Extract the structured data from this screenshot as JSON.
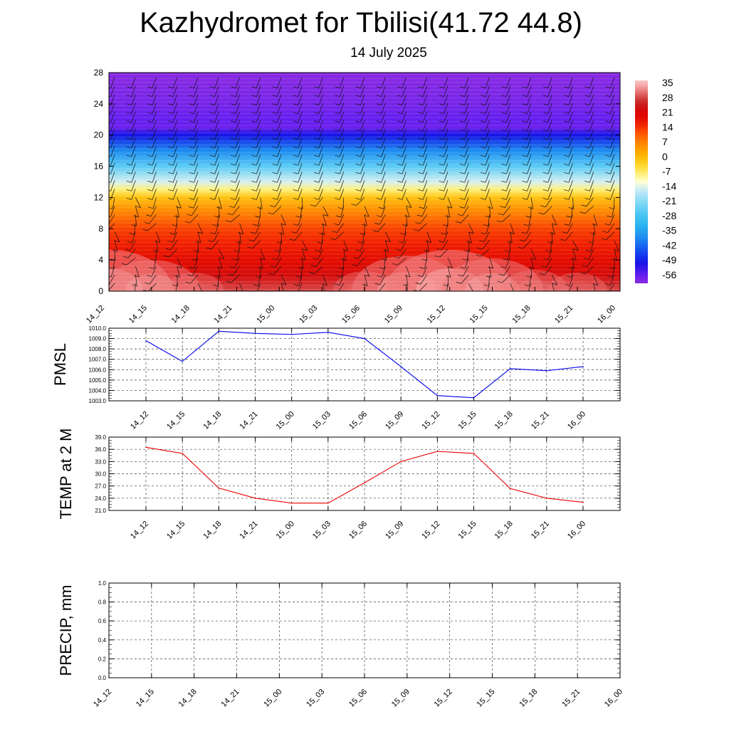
{
  "title": "Kazhydromet for Tbilisi(41.72 44.8)",
  "subtitle": "14 July 2025",
  "time_labels": [
    "14_12",
    "14_15",
    "14_18",
    "14_21",
    "15_00",
    "15_03",
    "15_06",
    "15_09",
    "15_12",
    "15_15",
    "15_18",
    "15_21",
    "16_00"
  ],
  "colors": {
    "pmsl_line": "#0000ee",
    "temp_line": "#ee0000",
    "precip_line": "#006400"
  },
  "chart_data": [
    {
      "type": "heatmap",
      "title": "",
      "xlabel": "",
      "ylabel": "",
      "x": [
        "14_12",
        "14_15",
        "14_18",
        "14_21",
        "15_00",
        "15_03",
        "15_06",
        "15_09",
        "15_12",
        "15_15",
        "15_18",
        "15_21",
        "16_00"
      ],
      "y_ticks": [
        0,
        4,
        8,
        12,
        16,
        20,
        24,
        28
      ],
      "ylim": [
        0,
        28
      ],
      "colorbar_labels": [
        35,
        28,
        21,
        14,
        7,
        0,
        -7,
        -14,
        -21,
        -28,
        -35,
        -42,
        -49,
        -56
      ],
      "colorbar_range": [
        -60,
        38
      ],
      "profile": [
        {
          "h": 0,
          "t": 30
        },
        {
          "h": 2,
          "t": 24
        },
        {
          "h": 4,
          "t": 20
        },
        {
          "h": 6,
          "t": 17
        },
        {
          "h": 8,
          "t": 14
        },
        {
          "h": 10,
          "t": 8
        },
        {
          "h": 12,
          "t": 0
        },
        {
          "h": 13,
          "t": -7
        },
        {
          "h": 14,
          "t": -14
        },
        {
          "h": 16,
          "t": -25
        },
        {
          "h": 18,
          "t": -38
        },
        {
          "h": 20,
          "t": -50
        },
        {
          "h": 21,
          "t": -57
        },
        {
          "h": 22,
          "t": -56
        },
        {
          "h": 24,
          "t": -58
        },
        {
          "h": 28,
          "t": -60
        }
      ],
      "surface_warm": [
        0.9,
        0.55,
        0.1,
        0.05,
        0.0,
        0.0,
        0.15,
        0.7,
        0.9,
        0.6,
        0.2,
        0.1,
        0.05
      ],
      "wind_barbs": true
    },
    {
      "type": "line",
      "ylabel": "PMSL",
      "x": [
        "14_12",
        "14_15",
        "14_18",
        "14_21",
        "15_00",
        "15_03",
        "15_06",
        "15_09",
        "15_12",
        "15_15",
        "15_18",
        "15_21",
        "16_00"
      ],
      "values": [
        1008.8,
        1006.8,
        1009.7,
        1009.5,
        1009.4,
        1009.6,
        1009.0,
        1006.3,
        1003.5,
        1003.3,
        1006.1,
        1005.9,
        1006.3
      ],
      "ylim": [
        1003.0,
        1010.0
      ],
      "y_ticks": [
        "1003.0",
        "1004.0",
        "1005.0",
        "1006.0",
        "1007.0",
        "1008.0",
        "1009.0",
        "1010.0"
      ],
      "grid": true
    },
    {
      "type": "line",
      "ylabel": "TEMP at 2 M",
      "x": [
        "14_12",
        "14_15",
        "14_18",
        "14_21",
        "15_00",
        "15_03",
        "15_06",
        "15_09",
        "15_12",
        "15_15",
        "15_18",
        "15_21",
        "16_00"
      ],
      "values": [
        36.5,
        35.0,
        26.5,
        24.0,
        22.8,
        22.8,
        27.8,
        33.0,
        35.5,
        35.0,
        26.4,
        24.0,
        23.0
      ],
      "ylim": [
        21.0,
        39.0
      ],
      "y_ticks": [
        "21.0",
        "24.0",
        "27.0",
        "30.0",
        "33.0",
        "36.0",
        "39.0"
      ],
      "grid": true
    },
    {
      "type": "line",
      "ylabel": "PRECIP, mm",
      "x": [
        "14_12",
        "14_15",
        "14_18",
        "14_21",
        "15_00",
        "15_03",
        "15_06",
        "15_09",
        "15_12",
        "15_15",
        "15_18",
        "15_21",
        "16_00"
      ],
      "values": [
        0,
        0,
        0,
        0,
        0,
        0,
        0,
        0,
        0,
        0,
        0,
        0,
        0
      ],
      "ylim": [
        0.0,
        1.0
      ],
      "y_ticks": [
        "0.0",
        "0.2",
        "0.4",
        "0.6",
        "0.8",
        "1.0"
      ],
      "grid": true
    }
  ]
}
